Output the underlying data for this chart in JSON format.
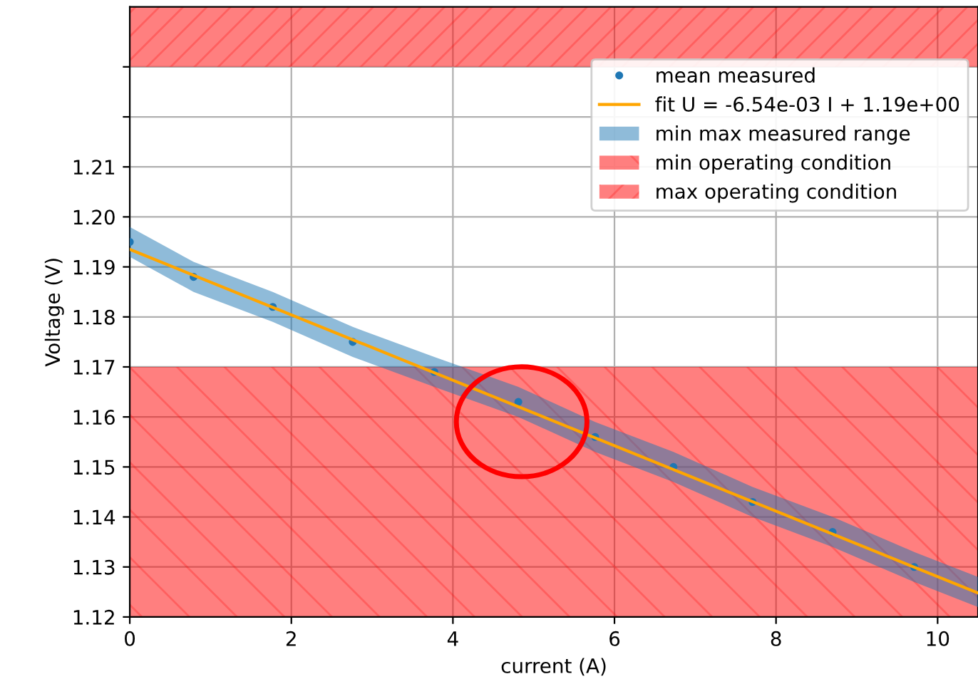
{
  "chart_data": {
    "type": "scatter",
    "xlabel": "current (A)",
    "ylabel": "Voltage (V)",
    "xlim": [
      0,
      10.5
    ],
    "xticks": [
      0,
      2,
      4,
      6,
      8,
      10
    ],
    "ylim": [
      1.12,
      1.242
    ],
    "yticks": [
      1.12,
      1.13,
      1.14,
      1.15,
      1.16,
      1.17,
      1.18,
      1.19,
      {
        "value": 1.2,
        "label": "1.20"
      },
      1.21,
      {
        "value": 1.22,
        "label": null
      },
      {
        "value": 1.23,
        "label": null
      }
    ],
    "grid": true,
    "legend": "top right",
    "series": [
      {
        "name": "mean measured",
        "marker": "circle",
        "color": "#1f77b4",
        "x": [
          0,
          0.79,
          1.77,
          2.76,
          3.77,
          4.81,
          5.76,
          6.73,
          7.71,
          8.7,
          9.71,
          10.5
        ],
        "values": [
          1.195,
          1.188,
          1.182,
          1.175,
          1.169,
          1.163,
          1.156,
          1.15,
          1.143,
          1.137,
          1.13,
          null
        ],
        "lower": [
          1.192,
          1.185,
          1.179,
          1.172,
          1.166,
          1.16,
          1.153,
          1.147,
          1.14,
          1.134,
          1.127,
          1.122
        ],
        "upper": [
          1.198,
          1.191,
          1.185,
          1.178,
          1.172,
          1.166,
          1.159,
          1.153,
          1.146,
          1.14,
          1.133,
          1.128
        ]
      },
      {
        "type": "line",
        "name": "fit U = -6.54e-03 I + 1.19e+00",
        "color": "#ffa500",
        "line_style": "solid",
        "x": [
          0,
          10.5
        ],
        "values": [
          1.1935,
          1.1248
        ]
      },
      {
        "type": "area",
        "name": "min max measured range",
        "color": "#1f77b4"
      }
    ],
    "bands": [
      {
        "axis": "y",
        "from": 1.12,
        "to": 1.17,
        "label": "min operating condition",
        "color": "#ff0000"
      },
      {
        "axis": "y",
        "from": 1.23,
        "to": 1.242,
        "label": "max operating condition",
        "color": "#ff0000"
      }
    ]
  }
}
